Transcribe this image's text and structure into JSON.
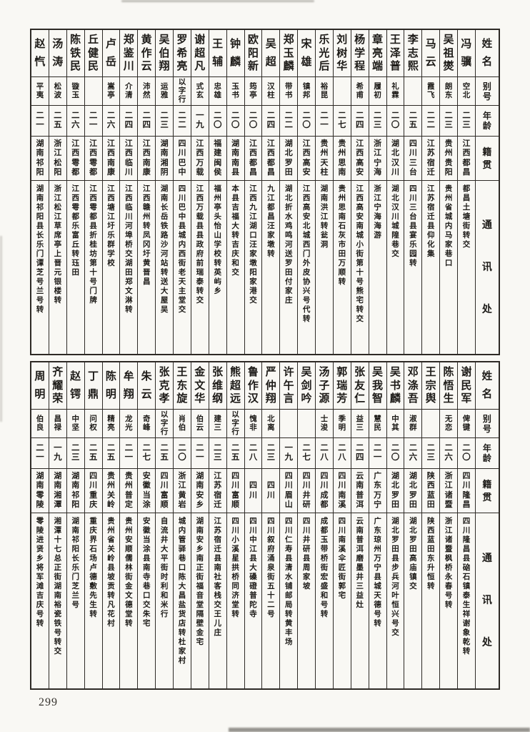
{
  "page_number": "299",
  "colors": {
    "paper": "#f9f8f4",
    "ink": "#1d1b18",
    "border": "#2e2a26"
  },
  "headers": {
    "name": "姓名",
    "alias": "别号",
    "age": "年龄",
    "origin": "籍贯",
    "address": "通讯处"
  },
  "tables": [
    {
      "id": "top",
      "people": [
        {
          "name": "冯骥",
          "alias": "空北",
          "age": "二三",
          "origin": "江西都昌",
          "address": "都昌土塘街转交"
        },
        {
          "name": "吴祖爕",
          "alias": "朗东",
          "age": "二三",
          "origin": "贵州贵阳",
          "address": "贵州省城内马家巷口"
        },
        {
          "name": "马云",
          "alias": "霞飞",
          "age": "二二",
          "origin": "江苏宿迁",
          "address": "江苏宿迁县仰化集"
        },
        {
          "name": "李志熙",
          "alias": "",
          "age": "二五",
          "origin": "四川三台",
          "address": "四川三台县宴乐园转"
        },
        {
          "name": "王泽普",
          "alias": "礼霖",
          "age": "二〇",
          "origin": "湖北汉川",
          "address": "湖北汉川城隍巷交"
        },
        {
          "name": "章亮端",
          "alias": "履初",
          "age": "二三",
          "origin": "浙江宁海",
          "address": "浙江宁海海游"
        },
        {
          "name": "杨学程",
          "alias": "希甫",
          "age": "二四",
          "origin": "江西高安",
          "address": "江西高安南城小街第十号熊宅转交"
        },
        {
          "name": "刘树华",
          "alias": "",
          "age": "二七",
          "origin": "贵州思南",
          "address": "贵州思南石灰市田万顺转"
        },
        {
          "name": "乐光后",
          "alias": "裕昆",
          "age": "二一",
          "origin": "贵州天柱",
          "address": "湖南洪江转瓮洞"
        },
        {
          "name": "宋雄",
          "alias": "镇邦",
          "age": "二〇",
          "origin": "江西高安",
          "address": "江西高安北城西门外皮协兴号代转"
        },
        {
          "name": "郑玉麟",
          "alias": "带书",
          "age": "二二",
          "origin": "湖北罗田",
          "address": "湖北折水鸡鸣河送罗田付家庄"
        },
        {
          "name": "吴超",
          "alias": "汉柱",
          "age": "二四",
          "origin": "江西都昌",
          "address": "九江都昌汪家墩转"
        },
        {
          "name": "欧阳新",
          "alias": "筠亭",
          "age": "二〇",
          "origin": "江西都昌",
          "address": "江西九江湖口汪家墩阳家港交"
        },
        {
          "name": "钟麟",
          "alias": "玉书",
          "age": "二〇",
          "origin": "湖南南县",
          "address": "本县吉福大转吉庆和交"
        },
        {
          "name": "王辅",
          "alias": "忠雄",
          "age": "二〇",
          "origin": "福建闽侯",
          "address": "福州亭头怡山学校转英屿乡"
        },
        {
          "name": "谢超凡",
          "alias": "式玄",
          "age": "一九",
          "origin": "江西万载",
          "address": "江西万载县县政府前瑞泰转交"
        },
        {
          "name": "罗希亮",
          "alias": "以字行",
          "age": "二二",
          "origin": "四川巴中",
          "address": "四川巴中县城内西街老天主堂交"
        },
        {
          "name": "吴伯翔",
          "alias": "运雅",
          "age": "二三",
          "origin": "湖南湘阴",
          "address": "湖南长岳铁路沙河站转送大屋吴"
        },
        {
          "name": "黄作云",
          "alias": "沛然",
          "age": "二四",
          "origin": "江西南康",
          "address": "江西赣州转凤冈圩黄晋昌"
        },
        {
          "name": "郑鉴川",
          "alias": "介清",
          "age": "二四",
          "origin": "江西临川",
          "address": "江西临川河埠桥交湖田郑文淋转"
        },
        {
          "name": "卢岳",
          "alias": "嵩亭",
          "age": "二六",
          "origin": "江西南康",
          "address": "江西塘江圩乐群学校"
        },
        {
          "name": "丘健民",
          "alias": "",
          "age": "二一",
          "origin": "江西雩都",
          "address": "江西雩都县折桂坊第十号门牌"
        },
        {
          "name": "陈铁民",
          "alias": "镟玉",
          "age": "二六",
          "origin": "江西雩都",
          "address": "江西雩都乐富丘转珏田"
        },
        {
          "name": "汤涛",
          "alias": "松波",
          "age": "二五",
          "origin": "浙江松阳",
          "address": "浙江松江草席亭上晋元银楼转"
        },
        {
          "name": "赵忾",
          "alias": "平夷",
          "age": "二一",
          "origin": "湖南祁阳",
          "address": "湖南祁阳县长乐门谭芝号兰号转"
        }
      ]
    },
    {
      "id": "bottom",
      "people": [
        {
          "name": "谢民军",
          "alias": "俾键",
          "age": "二〇",
          "origin": "四川隆昌",
          "address": "四川隆昌县硇石镇泰生祥谢象乾转"
        },
        {
          "name": "陈悟生",
          "alias": "无恋",
          "age": "二六",
          "origin": "浙江诸暨",
          "address": "浙江诸暨枫桥永春号转"
        },
        {
          "name": "王宗舆",
          "alias": "",
          "age": "二三",
          "origin": "陕西蓝田",
          "address": "陕西蓝田东升恒转"
        },
        {
          "name": "邓涤吾",
          "alias": "淑群",
          "age": "二六",
          "origin": "湖北罗田",
          "address": "湖北罗田高庙镇交"
        },
        {
          "name": "吴书麟",
          "alias": "中其",
          "age": "二〇",
          "origin": "湖北罗田",
          "address": "湖北罗田县步兵河叶恒兴号交"
        },
        {
          "name": "吴我智",
          "alias": "慧民",
          "age": "二一",
          "origin": "广东万宁",
          "address": "广东琼州万宁县城天德号转"
        },
        {
          "name": "张友仁",
          "alias": "益三",
          "age": "二四",
          "origin": "云南普洱",
          "address": "云南普洱磨墨井三益灶"
        },
        {
          "name": "郭瑞芳",
          "alias": "季明",
          "age": "二八",
          "origin": "四川南溪",
          "address": "四川南溪伞匠街郭宅"
        },
        {
          "name": "汤子源",
          "alias": "士浚",
          "age": "二八",
          "origin": "四川成都",
          "address": "成都玉带桥街宏盛和号转"
        },
        {
          "name": "吴剑吟",
          "alias": "",
          "age": "二七",
          "origin": "四川井研",
          "address": "四川井研县周家坡"
        },
        {
          "name": "许午言",
          "alias": "",
          "age": "一九",
          "origin": "四川眉山",
          "address": "四川仁寿县清水铺邮局转黄丰场"
        },
        {
          "name": "严仲翔",
          "alias": "北离",
          "age": "二三",
          "origin": "四川",
          "address": "四川叙府涌泉街五十二号"
        },
        {
          "name": "鲁作汉",
          "alias": "愧非",
          "age": "二八",
          "origin": "四川",
          "address": "四川中江县大磉磴普陀寺"
        },
        {
          "name": "熊超远",
          "alias": "以字行",
          "age": "二五",
          "origin": "四川富顺",
          "address": "四川小溪星拱桥同济堂转"
        },
        {
          "name": "张维纲",
          "alias": "建三",
          "age": "二三",
          "origin": "江苏宿迁",
          "address": "江苏宿迁县南社客栈交王儿庄"
        },
        {
          "name": "金文华",
          "alias": "伯云",
          "age": "二一",
          "origin": "湖南安乡",
          "address": "湖南安乡南正街福音堂隔壁金宅"
        },
        {
          "name": "王东旋",
          "alias": "肖伯",
          "age": "二〇",
          "origin": "浙江黄岩",
          "address": "城内管驿巷口陈大昌盐货店转杜家村"
        },
        {
          "name": "张克孝",
          "alias": "以字行",
          "age": "二五",
          "origin": "四川富顺",
          "address": "自流井大平街时利和米行"
        },
        {
          "name": "朱云",
          "alias": "奇峰",
          "age": "二七",
          "origin": "安徽当涂",
          "address": "安徽当涂县南寺巷口交朱宅"
        },
        {
          "name": "牟翔",
          "alias": "龙光",
          "age": "二一",
          "origin": "贵州普定",
          "address": "贵州安顺儒林街金文德堂转"
        },
        {
          "name": "陈明",
          "alias": "精亮",
          "age": "二五",
          "origin": "贵州关岭",
          "address": "贵州省关岭县坡贡转凡花村"
        },
        {
          "name": "丁鼎",
          "alias": "问权",
          "age": "二五",
          "origin": "四川重庆",
          "address": "重庆界石场卢德敷先生转"
        },
        {
          "name": "赵锷",
          "alias": "中坚",
          "age": "二三",
          "origin": "湖南祁阳",
          "address": "湖南祁阳长乐门芝兰号"
        },
        {
          "name": "齐耀荣",
          "alias": "昌禄",
          "age": "一九",
          "origin": "湖南湘潭",
          "address": "湘潭十七总正街湖南裕瓷铁号转交"
        },
        {
          "name": "周明",
          "alias": "伯良",
          "age": "二一",
          "origin": "湖南零陵",
          "address": "零陵进贤乡将军滩吉庆号转"
        }
      ]
    }
  ]
}
